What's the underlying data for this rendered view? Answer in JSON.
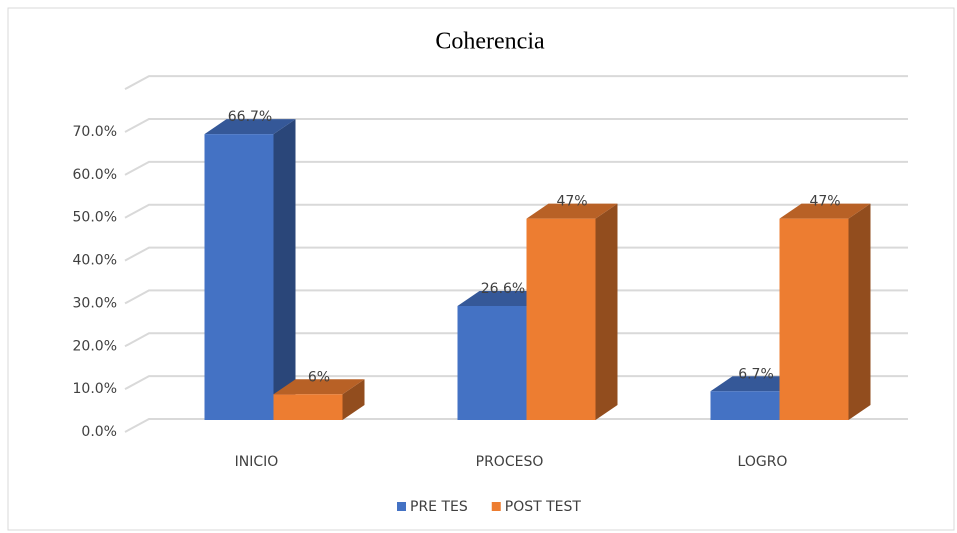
{
  "chart_data": {
    "type": "bar3d",
    "title": "Coherencia",
    "categories": [
      "INICIO",
      "PROCESO",
      "LOGRO"
    ],
    "series": [
      {
        "name": "PRE TES",
        "color": "#4472c4",
        "values": [
          66.7,
          26.6,
          6.7
        ],
        "value_labels": [
          "66.7%",
          "26.6%",
          "6.7%"
        ]
      },
      {
        "name": "POST TEST",
        "color": "#ed7d31",
        "values": [
          6,
          47,
          47
        ],
        "value_labels": [
          "6%",
          "47%",
          "47%"
        ]
      }
    ],
    "ylim": [
      0,
      80
    ],
    "yticks": [
      {
        "value": 0,
        "label": "0.0%"
      },
      {
        "value": 10,
        "label": "10.0%"
      },
      {
        "value": 20,
        "label": "20.0%"
      },
      {
        "value": 30,
        "label": "30.0%"
      },
      {
        "value": 40,
        "label": "40.0%"
      },
      {
        "value": 50,
        "label": "50.0%"
      },
      {
        "value": 60,
        "label": "60.0%"
      },
      {
        "value": 70,
        "label": "70.0%"
      }
    ],
    "grid": true,
    "legend": "bottom"
  }
}
